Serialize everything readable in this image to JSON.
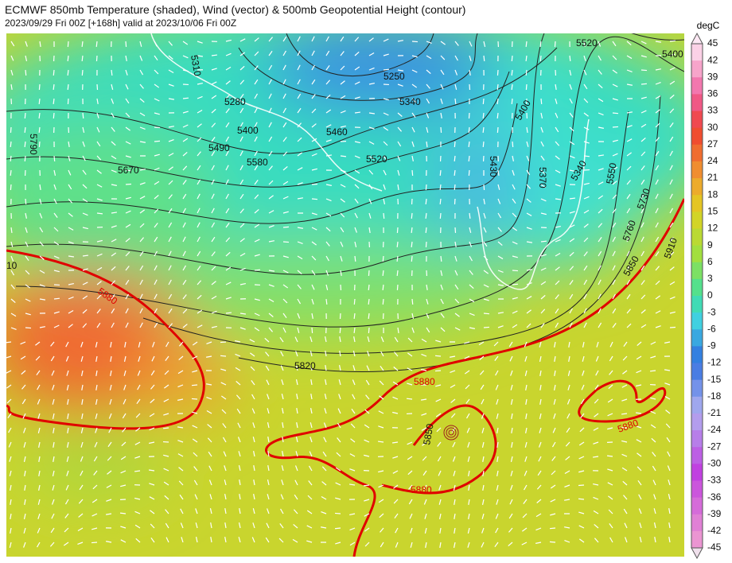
{
  "header": {
    "title": "ECMWF 850mb Temperature (shaded), Wind (vector) & 500mb Geopotential Height (contour)",
    "subtitle": "2023/09/29 Fri 00Z [+168h] valid at 2023/10/06 Fri 00Z"
  },
  "colorbar": {
    "unit": "degC",
    "ticks": [
      "45",
      "42",
      "39",
      "36",
      "33",
      "30",
      "27",
      "24",
      "21",
      "18",
      "15",
      "12",
      "9",
      "6",
      "3",
      "0",
      "-3",
      "-6",
      "-9",
      "-12",
      "-15",
      "-18",
      "-21",
      "-24",
      "-27",
      "-30",
      "-33",
      "-36",
      "-39",
      "-42",
      "-45"
    ]
  },
  "contour_labels": [
    "5310",
    "5280",
    "5400",
    "5490",
    "5580",
    "5670",
    "5790",
    "5250",
    "5340",
    "5460",
    "5520",
    "5520",
    "5400",
    "5400",
    "5430",
    "5370",
    "5340",
    "5550",
    "5730",
    "5760",
    "5850",
    "5910",
    "5820",
    "5880",
    "5880",
    "5880",
    "5880",
    "5850",
    "10"
  ]
}
